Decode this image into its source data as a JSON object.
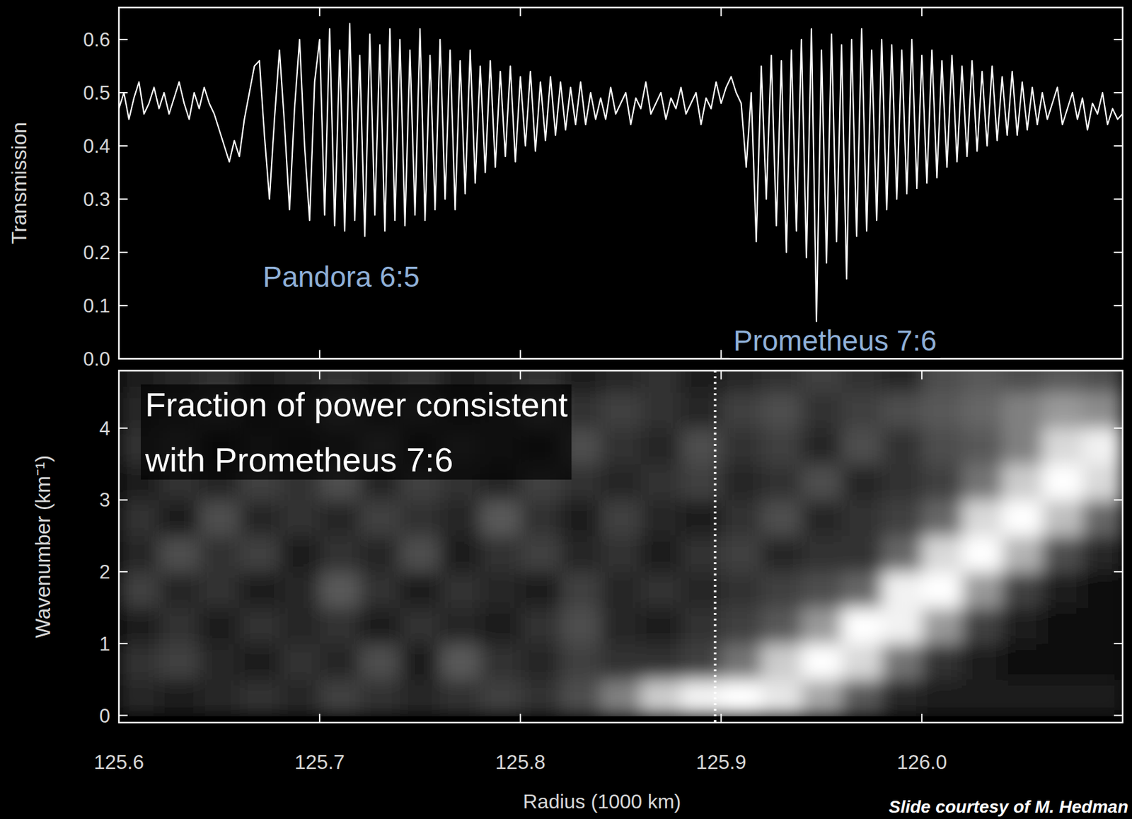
{
  "chart_data": [
    {
      "type": "line",
      "y_label": "Transmission",
      "x": [
        125.6,
        125.6025,
        125.605,
        125.6075,
        125.61,
        125.6125,
        125.615,
        125.6175,
        125.62,
        125.6225,
        125.625,
        125.6275,
        125.63,
        125.6325,
        125.635,
        125.6375,
        125.64,
        125.6425,
        125.645,
        125.6475,
        125.65,
        125.6525,
        125.655,
        125.6575,
        125.66,
        125.6625,
        125.665,
        125.6675,
        125.67,
        125.6725,
        125.675,
        125.6775,
        125.68,
        125.6825,
        125.685,
        125.6875,
        125.69,
        125.6925,
        125.695,
        125.6975,
        125.7,
        125.7025,
        125.705,
        125.7075,
        125.71,
        125.7125,
        125.715,
        125.7175,
        125.72,
        125.7225,
        125.725,
        125.7275,
        125.73,
        125.7325,
        125.735,
        125.7375,
        125.74,
        125.7425,
        125.745,
        125.7475,
        125.75,
        125.7525,
        125.755,
        125.7575,
        125.76,
        125.7625,
        125.765,
        125.7675,
        125.77,
        125.7725,
        125.775,
        125.7775,
        125.78,
        125.7825,
        125.785,
        125.7875,
        125.79,
        125.7925,
        125.795,
        125.7975,
        125.8,
        125.8025,
        125.805,
        125.8075,
        125.81,
        125.8125,
        125.815,
        125.8175,
        125.82,
        125.8225,
        125.825,
        125.8275,
        125.83,
        125.8325,
        125.835,
        125.8375,
        125.84,
        125.8425,
        125.845,
        125.8475,
        125.85,
        125.8525,
        125.855,
        125.8575,
        125.86,
        125.8625,
        125.865,
        125.8675,
        125.87,
        125.8725,
        125.875,
        125.8775,
        125.88,
        125.8825,
        125.885,
        125.8875,
        125.89,
        125.8925,
        125.895,
        125.8975,
        125.9,
        125.9025,
        125.905,
        125.9075,
        125.91,
        125.9125,
        125.915,
        125.9175,
        125.92,
        125.9225,
        125.925,
        125.9275,
        125.93,
        125.9325,
        125.935,
        125.9375,
        125.94,
        125.9425,
        125.945,
        125.9475,
        125.95,
        125.9525,
        125.955,
        125.9575,
        125.96,
        125.9625,
        125.965,
        125.9675,
        125.97,
        125.9725,
        125.975,
        125.9775,
        125.98,
        125.9825,
        125.985,
        125.9875,
        125.99,
        125.9925,
        125.995,
        125.9975,
        126.0,
        126.0025,
        126.005,
        126.0075,
        126.01,
        126.0125,
        126.015,
        126.0175,
        126.02,
        126.0225,
        126.025,
        126.0275,
        126.03,
        126.0325,
        126.035,
        126.0375,
        126.04,
        126.0425,
        126.045,
        126.0475,
        126.05,
        126.0525,
        126.055,
        126.0575,
        126.06,
        126.0625,
        126.065,
        126.0675,
        126.07,
        126.0725,
        126.075,
        126.0775,
        126.08,
        126.0825,
        126.085,
        126.0875,
        126.09,
        126.0925,
        126.095,
        126.0975,
        126.1
      ],
      "series": [
        {
          "color": "#ffffff",
          "values": [
            0.47,
            0.5,
            0.45,
            0.49,
            0.52,
            0.46,
            0.48,
            0.51,
            0.47,
            0.5,
            0.46,
            0.49,
            0.52,
            0.48,
            0.45,
            0.5,
            0.47,
            0.51,
            0.48,
            0.46,
            0.43,
            0.4,
            0.37,
            0.41,
            0.38,
            0.45,
            0.5,
            0.55,
            0.56,
            0.42,
            0.3,
            0.45,
            0.58,
            0.44,
            0.28,
            0.47,
            0.6,
            0.4,
            0.26,
            0.52,
            0.6,
            0.27,
            0.62,
            0.25,
            0.58,
            0.24,
            0.63,
            0.26,
            0.57,
            0.23,
            0.61,
            0.27,
            0.59,
            0.24,
            0.62,
            0.26,
            0.6,
            0.25,
            0.58,
            0.27,
            0.62,
            0.26,
            0.57,
            0.28,
            0.6,
            0.3,
            0.58,
            0.28,
            0.56,
            0.31,
            0.58,
            0.33,
            0.55,
            0.35,
            0.56,
            0.36,
            0.54,
            0.38,
            0.55,
            0.37,
            0.53,
            0.4,
            0.54,
            0.39,
            0.52,
            0.41,
            0.53,
            0.42,
            0.52,
            0.43,
            0.51,
            0.44,
            0.52,
            0.44,
            0.5,
            0.45,
            0.49,
            0.45,
            0.51,
            0.46,
            0.48,
            0.5,
            0.44,
            0.49,
            0.47,
            0.52,
            0.46,
            0.48,
            0.5,
            0.45,
            0.49,
            0.47,
            0.51,
            0.46,
            0.48,
            0.5,
            0.44,
            0.49,
            0.47,
            0.52,
            0.48,
            0.51,
            0.53,
            0.5,
            0.48,
            0.36,
            0.5,
            0.22,
            0.55,
            0.3,
            0.57,
            0.25,
            0.56,
            0.2,
            0.58,
            0.24,
            0.6,
            0.19,
            0.62,
            0.07,
            0.58,
            0.18,
            0.61,
            0.22,
            0.59,
            0.15,
            0.6,
            0.23,
            0.62,
            0.24,
            0.58,
            0.26,
            0.6,
            0.28,
            0.59,
            0.3,
            0.58,
            0.31,
            0.6,
            0.32,
            0.57,
            0.33,
            0.58,
            0.34,
            0.56,
            0.36,
            0.57,
            0.37,
            0.55,
            0.38,
            0.56,
            0.39,
            0.54,
            0.4,
            0.55,
            0.41,
            0.53,
            0.42,
            0.54,
            0.42,
            0.52,
            0.43,
            0.51,
            0.44,
            0.5,
            0.45,
            0.48,
            0.51,
            0.44,
            0.47,
            0.5,
            0.45,
            0.49,
            0.43,
            0.48,
            0.46,
            0.5,
            0.44,
            0.47,
            0.45,
            0.46
          ]
        }
      ],
      "xlim": [
        125.6,
        126.1
      ],
      "ylim": [
        0,
        0.66
      ],
      "xticks": [
        125.6,
        125.7,
        125.8,
        125.9,
        {
          "value": 126,
          "label": "126.0"
        }
      ],
      "yticks": [
        {
          "value": 0,
          "label": "0.0"
        },
        0.1,
        0.2,
        0.3,
        0.4,
        0.5,
        0.6
      ],
      "tick_labels": "y",
      "annotations": [
        {
          "text": "Pandora 6:5",
          "color": "#8fb0d8"
        },
        {
          "text": "Prometheus 7:6",
          "color": "#8fb0d8"
        }
      ]
    },
    {
      "type": "heatmap",
      "y_label": "Wavenumber (km⁻¹)",
      "x_label": "Radius (1000 km)",
      "x_edges": [
        125.6,
        125.62,
        125.64,
        125.66,
        125.68,
        125.7,
        125.72,
        125.74,
        125.76,
        125.78,
        125.8,
        125.82,
        125.84,
        125.86,
        125.88,
        125.9,
        125.92,
        125.94,
        125.96,
        125.98,
        126.0,
        126.02,
        126.04,
        126.06,
        126.08,
        126.1
      ],
      "y_edges": [
        0,
        0.5,
        1,
        1.5,
        2,
        2.5,
        3,
        3.5,
        4,
        4.5,
        5
      ],
      "cells": [
        [
          0.15,
          0.1,
          0.15,
          0.2,
          0.15,
          0.25,
          0.2,
          0.15,
          0.2,
          0.25,
          0.2,
          0.3,
          0.5,
          0.8,
          0.95,
          1.0,
          0.9,
          0.65,
          0.35,
          0.15,
          0.1,
          0.1,
          0.1,
          0.1,
          0.1
        ],
        [
          0.2,
          0.25,
          0.15,
          0.1,
          0.2,
          0.15,
          0.3,
          0.1,
          0.35,
          0.2,
          0.15,
          0.25,
          0.2,
          0.2,
          0.25,
          0.45,
          0.8,
          1.0,
          0.85,
          0.45,
          0.2,
          0.1,
          0.05,
          0.05,
          0.05
        ],
        [
          0.1,
          0.2,
          0.1,
          0.2,
          0.15,
          0.2,
          0.1,
          0.2,
          0.15,
          0.1,
          0.2,
          0.3,
          0.15,
          0.1,
          0.2,
          0.25,
          0.35,
          0.6,
          1.0,
          0.95,
          0.6,
          0.25,
          0.1,
          0.05,
          0.05
        ],
        [
          0.25,
          0.15,
          0.2,
          0.1,
          0.15,
          0.35,
          0.2,
          0.1,
          0.2,
          0.15,
          0.1,
          0.25,
          0.15,
          0.2,
          0.15,
          0.2,
          0.25,
          0.3,
          0.4,
          0.95,
          1.0,
          0.6,
          0.25,
          0.1,
          0.05
        ],
        [
          0.15,
          0.3,
          0.2,
          0.25,
          0.1,
          0.2,
          0.15,
          0.3,
          0.1,
          0.2,
          0.25,
          0.15,
          0.2,
          0.1,
          0.2,
          0.25,
          0.15,
          0.2,
          0.2,
          0.4,
          0.85,
          1.0,
          0.7,
          0.3,
          0.15
        ],
        [
          0.2,
          0.1,
          0.3,
          0.15,
          0.2,
          0.15,
          0.25,
          0.2,
          0.15,
          0.35,
          0.2,
          0.1,
          0.25,
          0.15,
          0.1,
          0.2,
          0.3,
          0.15,
          0.2,
          0.25,
          0.4,
          0.85,
          1.0,
          0.75,
          0.4
        ],
        [
          0.1,
          0.2,
          0.15,
          0.25,
          0.2,
          0.3,
          0.15,
          0.25,
          0.2,
          0.15,
          0.25,
          0.2,
          0.15,
          0.2,
          0.25,
          0.15,
          0.2,
          0.3,
          0.15,
          0.2,
          0.25,
          0.45,
          0.8,
          1.0,
          0.85
        ],
        [
          0.2,
          0.25,
          0.1,
          0.2,
          0.15,
          0.2,
          0.3,
          0.15,
          0.25,
          0.2,
          0.15,
          0.3,
          0.2,
          0.15,
          0.3,
          0.2,
          0.25,
          0.15,
          0.3,
          0.2,
          0.3,
          0.35,
          0.5,
          0.85,
          0.95
        ],
        [
          0.15,
          0.2,
          0.25,
          0.15,
          0.2,
          0.3,
          0.2,
          0.25,
          0.15,
          0.2,
          0.3,
          0.2,
          0.25,
          0.2,
          0.15,
          0.25,
          0.3,
          0.2,
          0.25,
          0.3,
          0.35,
          0.4,
          0.5,
          0.6,
          0.55
        ],
        [
          0.1,
          0.15,
          0.2,
          0.1,
          0.15,
          0.2,
          0.15,
          0.2,
          0.1,
          0.15,
          0.2,
          0.1,
          0.15,
          0.2,
          0.1,
          0.15,
          0.2,
          0.25,
          0.2,
          0.15,
          0.3,
          0.35,
          0.3,
          0.35,
          0.3
        ]
      ],
      "zlim": [
        0,
        1
      ],
      "xlim": [
        125.6,
        126.1
      ],
      "ylim": [
        -0.1,
        4.8
      ],
      "xticks": [
        125.6,
        125.7,
        125.8,
        125.9,
        {
          "value": 126,
          "label": "126.0"
        }
      ],
      "yticks": [
        0,
        1,
        2,
        3,
        4
      ],
      "annotations": [
        {
          "text": "Fraction of power consistent\nwith Prometheus 7:6",
          "color": "#ffffff"
        }
      ],
      "dotted_line_x": 125.897
    }
  ],
  "credit": "Slide courtesy of M. Hedman"
}
